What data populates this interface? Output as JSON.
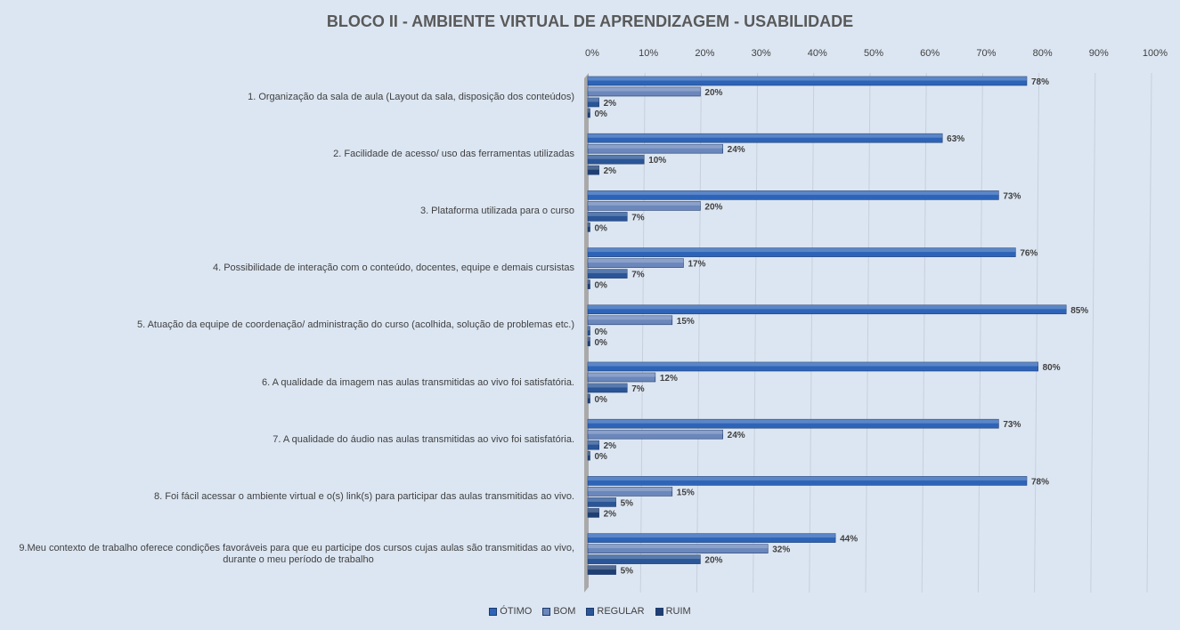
{
  "chart_data": {
    "type": "bar",
    "orientation": "horizontal",
    "title": "BLOCO II - AMBIENTE VIRTUAL DE APRENDIZAGEM - USABILIDADE",
    "categories": [
      "1. Organização da sala de aula (Layout da sala, disposição dos conteúdos)",
      "2. Facilidade de acesso/ uso das ferramentas utilizadas",
      "3. Plataforma utilizada para o curso",
      "4. Possibilidade de interação com o conteúdo, docentes, equipe e demais cursistas",
      "5. Atuação da equipe de coordenação/ administração do curso (acolhida, solução de problemas etc.)",
      "6. A qualidade da imagem nas aulas transmitidas ao vivo foi satisfatória.",
      "7. A qualidade do áudio nas aulas transmitidas ao vivo foi satisfatória.",
      "8. Foi fácil acessar o ambiente virtual e o(s) link(s) para participar das aulas transmitidas ao vivo.",
      "9.Meu contexto de trabalho oferece condições favoráveis para que eu participe dos cursos cujas aulas são transmitidas ao vivo, durante o meu período de trabalho"
    ],
    "category_lines": [
      [
        "1. Organização da sala de aula (Layout da sala, disposição dos conteúdos)"
      ],
      [
        "2. Facilidade de acesso/ uso das ferramentas utilizadas"
      ],
      [
        "3. Plataforma utilizada para o curso"
      ],
      [
        "4. Possibilidade de interação com o conteúdo, docentes, equipe e demais cursistas"
      ],
      [
        "5. Atuação da equipe de coordenação/ administração do curso (acolhida, solução de problemas etc.)"
      ],
      [
        "6. A qualidade da imagem nas aulas transmitidas ao vivo foi satisfatória."
      ],
      [
        "7. A qualidade do áudio nas aulas transmitidas ao vivo foi satisfatória."
      ],
      [
        "8. Foi fácil acessar o ambiente virtual e o(s) link(s) para participar das aulas transmitidas ao vivo."
      ],
      [
        "9.Meu contexto de trabalho oferece condições favoráveis para que eu participe dos cursos cujas aulas são transmitidas ao vivo,",
        "durante o meu período de trabalho"
      ]
    ],
    "series": [
      {
        "name": "ÓTIMO",
        "values": [
          78,
          63,
          73,
          76,
          85,
          80,
          73,
          78,
          44
        ],
        "color": "#2e64b8"
      },
      {
        "name": "BOM",
        "values": [
          20,
          24,
          20,
          17,
          15,
          12,
          24,
          15,
          32
        ],
        "color": "#6b87bb"
      },
      {
        "name": "REGULAR",
        "values": [
          2,
          10,
          7,
          7,
          0,
          7,
          2,
          5,
          20
        ],
        "color": "#2a5597"
      },
      {
        "name": "RUIM",
        "values": [
          0,
          2,
          0,
          0,
          0,
          0,
          0,
          2,
          5
        ],
        "color": "#1f3f73"
      }
    ],
    "x_ticks": [
      "0%",
      "10%",
      "20%",
      "30%",
      "40%",
      "50%",
      "60%",
      "70%",
      "80%",
      "90%",
      "100%"
    ],
    "xlim": [
      0,
      100
    ],
    "value_suffix": "%",
    "grid": true,
    "legend_position": "bottom"
  }
}
